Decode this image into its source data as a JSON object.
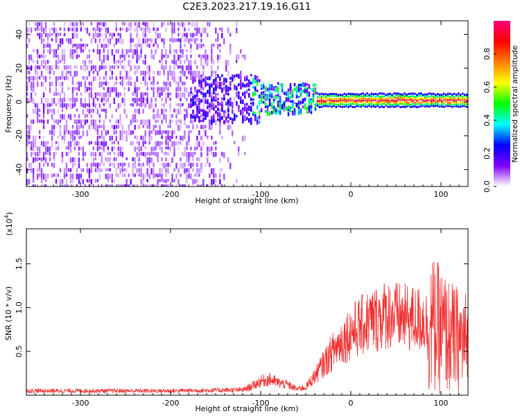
{
  "title": "C2E3.2023.217.19.16.G11",
  "colors": {
    "snr_line": "#f03030",
    "frame": "#000000"
  },
  "chart_data": [
    {
      "type": "heatmap",
      "xlabel": "Height of straight line (km)",
      "ylabel": "Frequency (Hz)",
      "xlim": [
        -360,
        130
      ],
      "ylim": [
        -50,
        48
      ],
      "x_ticks": [
        -300,
        -200,
        -100,
        0,
        100
      ],
      "y_ticks": [
        -40,
        -20,
        0,
        20,
        40
      ],
      "colorbar": {
        "label": "Normalized spectral amplitude",
        "range": [
          0.0,
          1.0
        ],
        "ticks": [
          "0.0",
          "0.2",
          "0.4",
          "0.6",
          "0.8"
        ],
        "colormap": [
          "#ffffff",
          "#7f00ff",
          "#0000ff",
          "#00ffff",
          "#00ff00",
          "#ffff00",
          "#ff8000",
          "#ff0000",
          "#ff0080"
        ]
      },
      "features": [
        {
          "region": "noise",
          "x": [
            -360,
            -110
          ],
          "freq_spread_hz": 48,
          "amplitude": 0.1
        },
        {
          "region": "transition",
          "x": [
            -180,
            -40
          ],
          "freq_center_hz": 2,
          "freq_spread_hz": 10,
          "amplitude": 0.35
        },
        {
          "region": "signal",
          "x": [
            -40,
            130
          ],
          "freq_center_hz": 1,
          "freq_spread_hz": 2,
          "amplitude": 0.85
        }
      ]
    },
    {
      "type": "line",
      "xlabel": "Height of straight line (km)",
      "ylabel": "SNR (10 * v/v)",
      "y_scale_label": "(x10",
      "y_scale_exp": "4",
      "y_scale_close": ")",
      "xlim": [
        -360,
        130
      ],
      "ylim": [
        0,
        19000
      ],
      "x_ticks": [
        -300,
        -200,
        -100,
        0,
        100
      ],
      "y_ticks": [
        "0.5",
        "1.0",
        "1.5"
      ],
      "y_tick_values": [
        5000,
        10000,
        15000
      ],
      "series": [
        {
          "x": [
            -360,
            -300,
            -200,
            -120,
            -110,
            -100,
            -90,
            -80,
            -70,
            -60,
            -50,
            -40,
            -30,
            -20,
            -10,
            0,
            10,
            20,
            30,
            40,
            50,
            60,
            70,
            80,
            90,
            100,
            110,
            120,
            130
          ],
          "y": [
            500,
            500,
            500,
            600,
            1000,
            1600,
            1800,
            1400,
            1200,
            700,
            900,
            2200,
            3600,
            5000,
            6200,
            7200,
            7800,
            8400,
            8800,
            9300,
            9000,
            8800,
            8700,
            8600,
            8000,
            7400,
            6600,
            6200,
            6000
          ]
        }
      ]
    }
  ]
}
